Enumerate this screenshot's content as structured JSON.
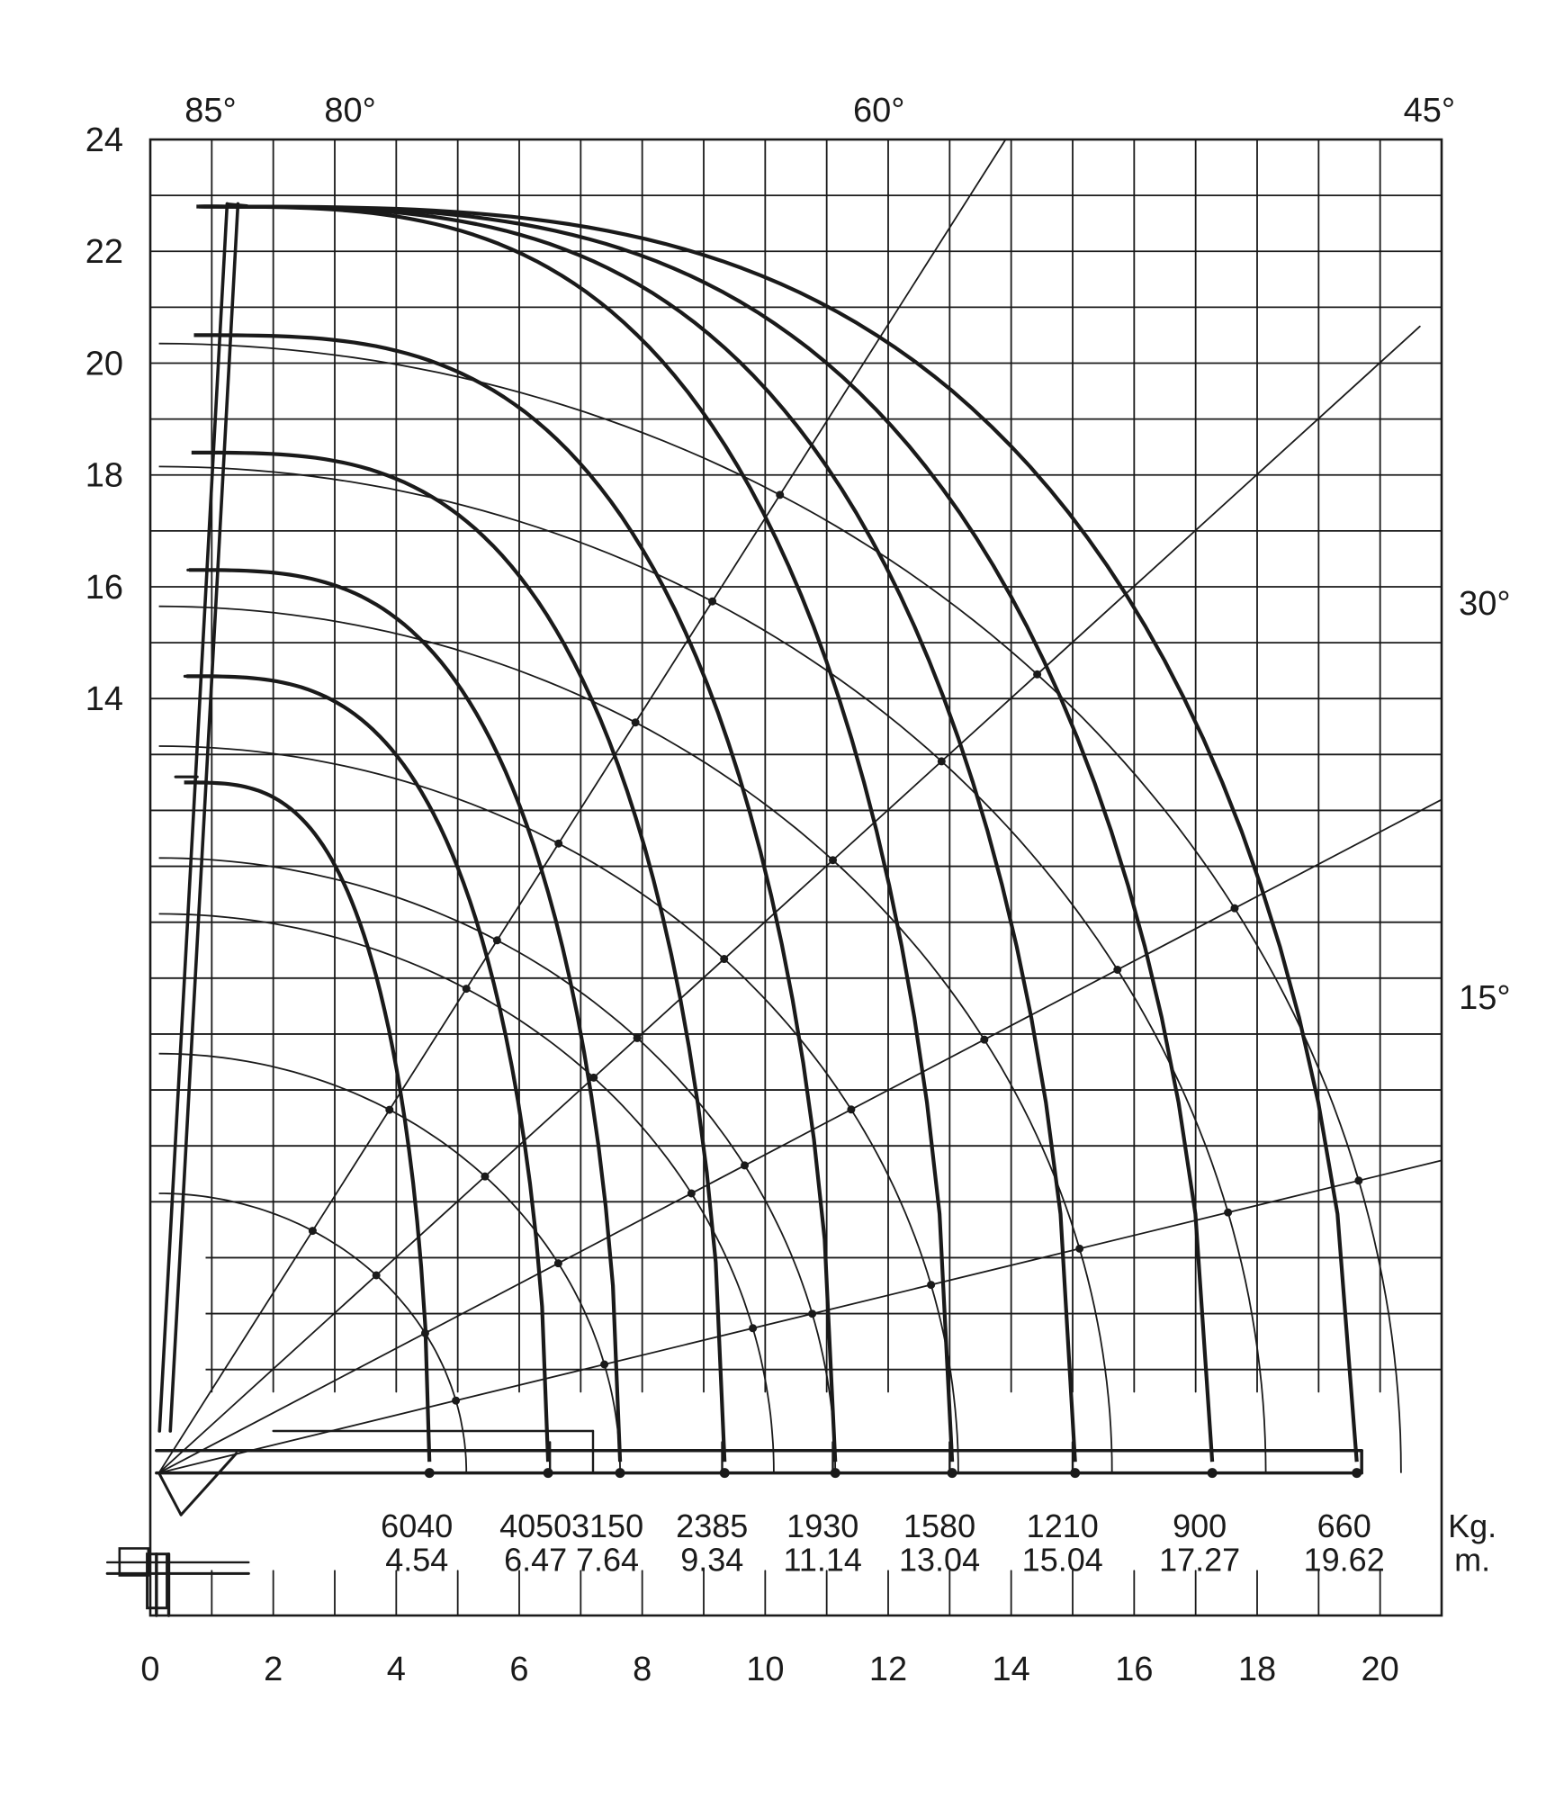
{
  "chart_data": {
    "type": "line",
    "title": "",
    "xlabel": "",
    "ylabel": "",
    "xlim": [
      0,
      21
    ],
    "ylim": [
      -2.4,
      24
    ],
    "x_ticks": [
      "0",
      "2",
      "4",
      "6",
      "8",
      "10",
      "12",
      "14",
      "16",
      "18",
      "20"
    ],
    "y_ticks": [
      "14",
      "16",
      "18",
      "20",
      "22",
      "24"
    ],
    "angle_labels": [
      "85°",
      "80°",
      "60°",
      "45°",
      "30°",
      "15°"
    ],
    "boom_angles": [
      85,
      80,
      60,
      45,
      30,
      15
    ],
    "units": {
      "load": "Kg.",
      "reach": "m."
    },
    "load_points": [
      {
        "load": "6040",
        "reach": "4.54",
        "x": 4.54
      },
      {
        "load": "4050",
        "reach": "6.47",
        "x": 6.47
      },
      {
        "load": "3150",
        "reach": "7.64",
        "x": 7.64
      },
      {
        "load": "2385",
        "reach": "9.34",
        "x": 9.34
      },
      {
        "load": "1930",
        "reach": "11.14",
        "x": 11.14
      },
      {
        "load": "1580",
        "reach": "13.04",
        "x": 13.04
      },
      {
        "load": "1210",
        "reach": "15.04",
        "x": 15.04
      },
      {
        "load": "900",
        "reach": "17.27",
        "x": 17.27
      },
      {
        "load": "660",
        "reach": "19.62",
        "x": 19.62
      }
    ],
    "envelope_peaks": [
      12.5,
      14.4,
      16.3,
      18.4,
      20.5,
      22.8
    ],
    "grid": true,
    "colors": {
      "line": "#1a1a1a",
      "grid": "#1a1a1a",
      "background": "#ffffff"
    }
  }
}
